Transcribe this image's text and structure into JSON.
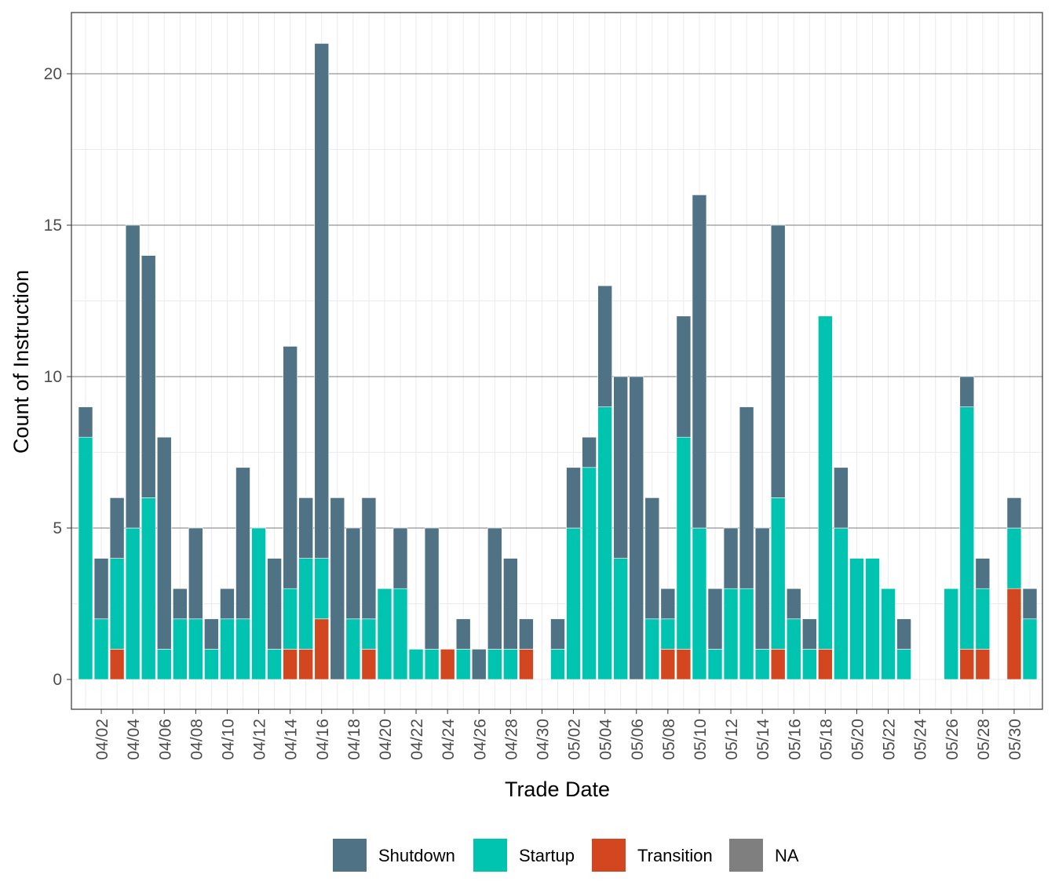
{
  "chart_data": {
    "type": "bar",
    "stacked": true,
    "xlabel": "Trade Date",
    "ylabel": "Count of Instruction",
    "ylim": [
      -0.9,
      22
    ],
    "yticks": [
      0,
      5,
      10,
      15,
      20
    ],
    "grid": true,
    "legend_position": "bottom",
    "categories": [
      "04/01",
      "04/02",
      "04/03",
      "04/04",
      "04/05",
      "04/06",
      "04/07",
      "04/08",
      "04/09",
      "04/10",
      "04/11",
      "04/12",
      "04/13",
      "04/14",
      "04/15",
      "04/16",
      "04/17",
      "04/18",
      "04/19",
      "04/20",
      "04/21",
      "04/22",
      "04/23",
      "04/24",
      "04/25",
      "04/26",
      "04/27",
      "04/28",
      "04/29",
      "04/30",
      "05/01",
      "05/02",
      "05/03",
      "05/04",
      "05/05",
      "05/06",
      "05/07",
      "05/08",
      "05/09",
      "05/10",
      "05/11",
      "05/12",
      "05/13",
      "05/14",
      "05/15",
      "05/16",
      "05/17",
      "05/18",
      "05/19",
      "05/20",
      "05/21",
      "05/22",
      "05/23",
      "05/24",
      "05/25",
      "05/26",
      "05/27",
      "05/28",
      "05/29",
      "05/30",
      "05/31"
    ],
    "x_tick_labels": [
      "04/02",
      "04/04",
      "04/06",
      "04/08",
      "04/10",
      "04/12",
      "04/14",
      "04/16",
      "04/18",
      "04/20",
      "04/22",
      "04/24",
      "04/26",
      "04/28",
      "04/30",
      "05/02",
      "05/04",
      "05/06",
      "05/08",
      "05/10",
      "05/12",
      "05/14",
      "05/16",
      "05/18",
      "05/20",
      "05/22",
      "05/24",
      "05/26",
      "05/28",
      "05/30"
    ],
    "series": [
      {
        "name": "Transition",
        "color": "#D24720",
        "values": [
          0,
          0,
          1,
          0,
          0,
          0,
          0,
          0,
          0,
          0,
          0,
          0,
          0,
          1,
          1,
          2,
          0,
          0,
          1,
          0,
          0,
          0,
          0,
          1,
          0,
          0,
          0,
          0,
          1,
          0,
          0,
          0,
          0,
          0,
          0,
          0,
          0,
          1,
          1,
          0,
          0,
          0,
          0,
          0,
          1,
          0,
          0,
          1,
          0,
          0,
          0,
          0,
          0,
          0,
          0,
          0,
          1,
          1,
          0,
          3,
          0
        ]
      },
      {
        "name": "Startup",
        "color": "#00C4B0",
        "values": [
          8,
          2,
          3,
          5,
          6,
          1,
          2,
          2,
          1,
          2,
          2,
          5,
          1,
          2,
          3,
          2,
          0,
          2,
          1,
          3,
          3,
          1,
          1,
          0,
          1,
          0,
          1,
          1,
          0,
          0,
          1,
          5,
          7,
          9,
          4,
          0,
          2,
          1,
          7,
          5,
          1,
          3,
          3,
          1,
          5,
          2,
          1,
          11,
          5,
          4,
          4,
          3,
          1,
          0,
          0,
          3,
          8,
          2,
          0,
          2,
          2
        ]
      },
      {
        "name": "Shutdown",
        "color": "#4F7285",
        "values": [
          1,
          2,
          2,
          10,
          8,
          7,
          1,
          3,
          1,
          1,
          5,
          0,
          3,
          8,
          2,
          17,
          6,
          3,
          4,
          0,
          2,
          0,
          4,
          0,
          1,
          1,
          4,
          3,
          1,
          0,
          1,
          2,
          1,
          4,
          6,
          10,
          4,
          1,
          4,
          11,
          2,
          2,
          6,
          4,
          9,
          1,
          1,
          0,
          2,
          0,
          0,
          0,
          1,
          0,
          0,
          0,
          1,
          1,
          0,
          1,
          1
        ]
      },
      {
        "name": "NA",
        "color": "#7F7F7F",
        "values": [
          0,
          0,
          0,
          0,
          0,
          0,
          0,
          0,
          0,
          0,
          0,
          0,
          0,
          0,
          0,
          0,
          0,
          0,
          0,
          0,
          0,
          0,
          0,
          0,
          0,
          0,
          0,
          0,
          0,
          0,
          0,
          0,
          0,
          0,
          0,
          0,
          0,
          0,
          0,
          0,
          0,
          0,
          0,
          0,
          0,
          0,
          0,
          0,
          0,
          0,
          0,
          0,
          0,
          0,
          0,
          0,
          0,
          0,
          0,
          0,
          0
        ]
      }
    ],
    "legend_order": [
      "Shutdown",
      "Startup",
      "Transition",
      "NA"
    ]
  }
}
